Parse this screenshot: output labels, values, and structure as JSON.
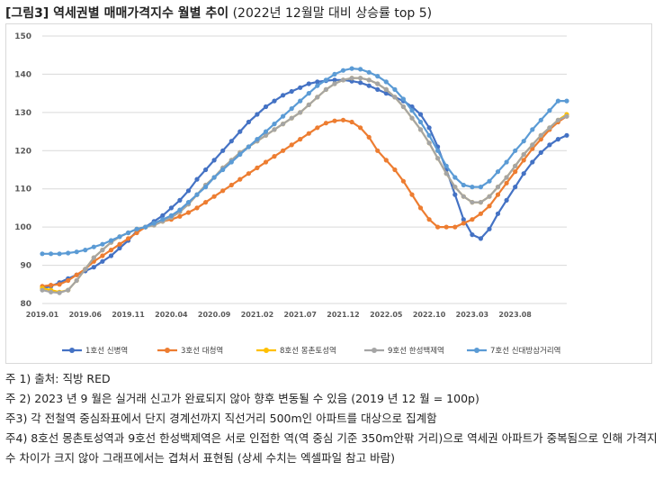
{
  "header": {
    "title_main": "[그림3] 역세권별 매매가격지수 월별 추이",
    "title_sub": "(2022년 12월말 대비 상승률 top 5)"
  },
  "notes": [
    "주 1) 출처: 직방 RED",
    "주 2) 2023 년 9 월은 실거래 신고가 완료되지 않아 향후 변동될 수 있음 (2019 년 12 월 = 100p)",
    "주3) 각 전철역 중심좌표에서 단지 경계선까지 직선거리 500m인 아파트를 대상으로 집계함",
    "주4) 8호선 몽촌토성역과 9호선 한성백제역은 서로 인접한 역(역 중심 기준 350m안팎 거리)으로 역세권 아파트가 중복됨으로 인해 가격지수 차이가 크지 않아 그래프에서는 겹쳐서 표현됨 (상세 수치는 엑셀파일 참고 바람)"
  ],
  "chart_data": {
    "type": "line",
    "title": "",
    "xlabel": "",
    "ylabel": "",
    "ylim": [
      80,
      150
    ],
    "yticks": [
      "80",
      "90",
      "100",
      "110",
      "120",
      "130",
      "140",
      "150"
    ],
    "xtick_labels": [
      "2019.01",
      "2019.06",
      "2019.11",
      "2020.04",
      "2020.09",
      "2021.02",
      "2021.07",
      "2021.12",
      "2022.05",
      "2022.10",
      "2023.03",
      "2023.08"
    ],
    "grid": true,
    "legend_position": "bottom",
    "series": [
      {
        "name": "1호선 신병역",
        "color": "#4472C4",
        "values": [
          84.0,
          84.5,
          85.5,
          86.5,
          87.5,
          88.5,
          89.5,
          91.0,
          92.5,
          94.5,
          96.5,
          99.0,
          100.0,
          101.5,
          103.0,
          105.0,
          107.0,
          109.5,
          112.5,
          115.0,
          117.5,
          120.0,
          122.5,
          125.0,
          127.5,
          129.5,
          131.5,
          133.0,
          134.5,
          135.5,
          136.5,
          137.5,
          138.0,
          138.3,
          138.5,
          138.5,
          138.2,
          137.8,
          137.0,
          136.0,
          135.0,
          134.0,
          133.0,
          131.5,
          129.5,
          126.0,
          121.0,
          115.0,
          108.5,
          102.0,
          98.0,
          97.0,
          99.5,
          103.5,
          107.0,
          110.5,
          114.0,
          117.0,
          119.5,
          121.5,
          123.0,
          124.0
        ]
      },
      {
        "name": "3호선 대청역",
        "color": "#ED7D31",
        "values": [
          84.5,
          84.8,
          85.0,
          86.0,
          87.5,
          89.0,
          91.0,
          92.5,
          94.0,
          95.5,
          97.0,
          98.5,
          100.0,
          100.8,
          101.5,
          102.0,
          102.8,
          103.8,
          105.0,
          106.5,
          108.0,
          109.5,
          111.0,
          112.5,
          114.0,
          115.5,
          117.0,
          118.5,
          120.0,
          121.5,
          123.0,
          124.5,
          126.0,
          127.2,
          127.8,
          128.0,
          127.5,
          126.0,
          123.5,
          120.0,
          117.5,
          115.0,
          112.0,
          108.5,
          105.0,
          102.0,
          100.0,
          100.0,
          100.0,
          101.0,
          102.0,
          103.5,
          105.5,
          108.5,
          111.5,
          114.5,
          117.5,
          120.5,
          123.0,
          125.5,
          127.5,
          129.0
        ]
      },
      {
        "name": "8호선 몽촌토성역",
        "color": "#FFC000",
        "values": [
          84.0,
          83.5,
          83.0,
          83.5,
          86.0,
          89.0,
          92.0,
          94.0,
          96.0,
          97.5,
          98.5,
          99.5,
          100.0,
          100.5,
          101.5,
          102.5,
          104.0,
          106.0,
          108.5,
          111.0,
          113.0,
          115.5,
          117.5,
          119.5,
          121.0,
          122.5,
          124.0,
          125.5,
          127.0,
          128.5,
          130.0,
          132.0,
          134.0,
          136.0,
          137.5,
          138.5,
          139.0,
          139.0,
          138.5,
          137.5,
          136.0,
          134.0,
          131.5,
          128.5,
          125.5,
          122.0,
          118.0,
          114.0,
          110.5,
          108.0,
          106.5,
          106.5,
          108.0,
          110.5,
          113.0,
          116.0,
          119.0,
          121.5,
          124.0,
          126.0,
          128.0,
          129.5
        ]
      },
      {
        "name": "9호선 한성백제역",
        "color": "#A5A5A5",
        "values": [
          83.5,
          83.0,
          82.8,
          83.5,
          86.0,
          89.0,
          92.0,
          94.0,
          96.0,
          97.5,
          98.5,
          99.5,
          100.0,
          100.5,
          101.5,
          102.5,
          104.0,
          106.0,
          108.5,
          111.0,
          113.0,
          115.5,
          117.5,
          119.5,
          121.0,
          122.5,
          124.0,
          125.5,
          127.0,
          128.5,
          130.0,
          132.0,
          134.0,
          136.0,
          137.5,
          138.5,
          139.0,
          139.0,
          138.5,
          137.5,
          136.0,
          134.0,
          131.5,
          128.5,
          125.5,
          122.0,
          118.0,
          114.0,
          110.5,
          108.0,
          106.5,
          106.5,
          108.0,
          110.5,
          113.0,
          116.0,
          119.0,
          121.5,
          124.0,
          126.0,
          128.0,
          129.0
        ]
      },
      {
        "name": "7호선 신대방삼거리역",
        "color": "#5B9BD5",
        "values": [
          93.0,
          93.0,
          93.0,
          93.2,
          93.5,
          94.0,
          94.8,
          95.5,
          96.5,
          97.5,
          98.5,
          99.5,
          100.0,
          101.0,
          102.0,
          103.0,
          104.5,
          106.5,
          108.5,
          110.5,
          113.0,
          115.0,
          117.0,
          119.0,
          121.0,
          123.0,
          125.0,
          127.0,
          129.0,
          131.0,
          133.0,
          135.0,
          137.0,
          138.5,
          140.0,
          141.0,
          141.5,
          141.3,
          140.5,
          139.5,
          138.0,
          136.0,
          133.5,
          130.5,
          127.5,
          124.0,
          120.0,
          116.0,
          113.0,
          111.0,
          110.5,
          110.5,
          112.0,
          114.5,
          117.0,
          120.0,
          122.5,
          125.5,
          128.0,
          130.5,
          133.0,
          133.0
        ]
      }
    ]
  }
}
